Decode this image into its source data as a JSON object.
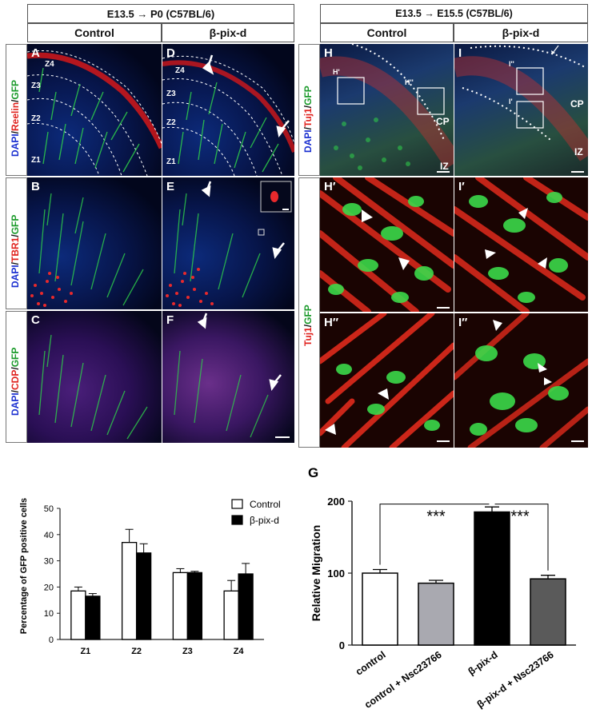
{
  "left_section": {
    "header": "E13.5 → P0 (C57BL/6)",
    "col_control": "Control",
    "col_bpixd": "β-pix-d",
    "row_labels": [
      {
        "stain1": "DAPI",
        "stain2": "Reelin",
        "stain3": "GFP"
      },
      {
        "stain1": "DAPI",
        "stain2": "TBR1",
        "stain3": "GFP"
      },
      {
        "stain1": "DAPI",
        "stain2": "CDP",
        "stain3": "GFP"
      }
    ],
    "panels": [
      "A",
      "B",
      "C",
      "D",
      "E",
      "F"
    ],
    "zones": [
      "Z4",
      "Z3",
      "Z2",
      "Z1"
    ]
  },
  "right_section": {
    "header": "E13.5 → E15.5 (C57BL/6)",
    "col_control": "Control",
    "col_bpixd": "β-pix-d",
    "row_label_top": {
      "stain1": "DAPI",
      "stain2": "Tuj1",
      "stain3": "GFP"
    },
    "row_label_bottom": {
      "stain2": "Tuj1",
      "stain3": "GFP"
    },
    "panels": [
      "H",
      "I",
      "H′",
      "I′",
      "H″",
      "I″"
    ],
    "inset_h1": "H'",
    "inset_h2": "H''",
    "inset_i1": "I'",
    "inset_i2": "I''",
    "cp": "CP",
    "iz": "IZ"
  },
  "chart_data": [
    {
      "type": "bar",
      "ylabel": "Percentage of GFP positive cells",
      "categories": [
        "Z1",
        "Z2",
        "Z3",
        "Z4"
      ],
      "ylim": [
        0,
        50
      ],
      "yticks": [
        "0",
        "10",
        "20",
        "30",
        "40",
        "50"
      ],
      "series": [
        {
          "name": "Control",
          "values": [
            18.5,
            37,
            25.5,
            18.5
          ],
          "errors": [
            1.5,
            5,
            1.5,
            4
          ],
          "color": "#ffffff"
        },
        {
          "name": "β-pix-d",
          "values": [
            16.5,
            33,
            25.5,
            25
          ],
          "errors": [
            1,
            3.5,
            0.5,
            4
          ],
          "color": "#000000"
        }
      ],
      "legend": "top-right"
    },
    {
      "type": "bar",
      "panel_letter": "G",
      "ylabel": "Relative Migration",
      "categories": [
        "control",
        "control + Nsc23766",
        "β-pix-d",
        "β-pix-d + Nsc23766"
      ],
      "values": [
        100,
        86,
        185,
        92
      ],
      "errors": [
        5,
        4,
        7,
        5
      ],
      "colors": [
        "#ffffff",
        "#a9a9b0",
        "#000000",
        "#5a5a5a"
      ],
      "ylim": [
        0,
        200
      ],
      "yticks": [
        "0",
        "100",
        "200"
      ],
      "significance": [
        "***",
        "***"
      ]
    }
  ]
}
